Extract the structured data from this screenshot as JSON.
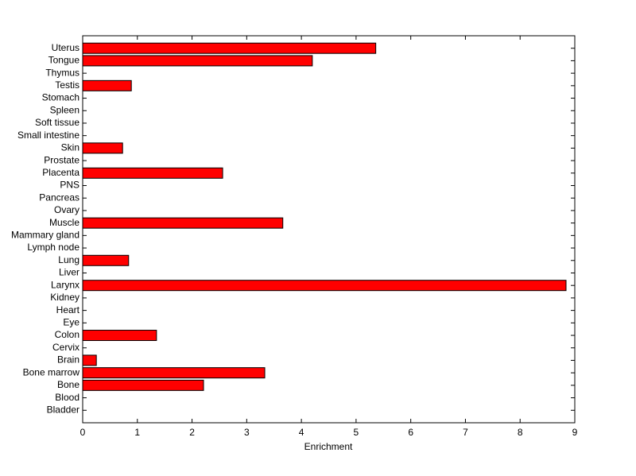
{
  "chart_data": {
    "type": "barh",
    "xlabel": "Enrichment",
    "categories": [
      "Uterus",
      "Tongue",
      "Thymus",
      "Testis",
      "Stomach",
      "Spleen",
      "Soft tissue",
      "Small intestine",
      "Skin",
      "Prostate",
      "Placenta",
      "PNS",
      "Pancreas",
      "Ovary",
      "Muscle",
      "Mammary gland",
      "Lymph node",
      "Lung",
      "Liver",
      "Larynx",
      "Kidney",
      "Heart",
      "Eye",
      "Colon",
      "Cervix",
      "Brain",
      "Bone marrow",
      "Bone",
      "Blood",
      "Bladder"
    ],
    "values": [
      5.36,
      4.2,
      0,
      0.89,
      0,
      0,
      0,
      0,
      0.73,
      0,
      2.56,
      0,
      0,
      0,
      3.66,
      0,
      0,
      0.84,
      0,
      8.84,
      0,
      0,
      0,
      1.35,
      0,
      0.25,
      3.33,
      2.21,
      0,
      0
    ],
    "color": "#ff0000",
    "xlim": [
      0,
      9
    ],
    "xticks": [
      0,
      1,
      2,
      3,
      4,
      5,
      6,
      7,
      8,
      9
    ]
  }
}
